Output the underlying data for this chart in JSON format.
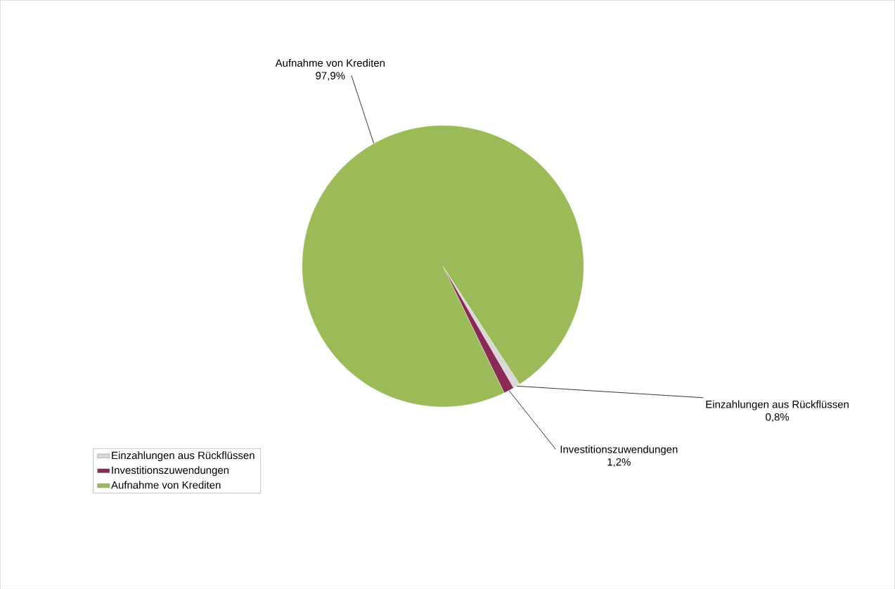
{
  "chart_data": {
    "type": "pie",
    "categories": [
      "Einzahlungen aus Rückflüssen",
      "Investitionszuwendungen",
      "Aufnahme von Krediten"
    ],
    "values": [
      0.8,
      1.2,
      97.9
    ],
    "value_labels": [
      "0,8%",
      "1,2%",
      "97,9%"
    ],
    "colors": [
      "#d9d9d9",
      "#8b2a57",
      "#9bbb59"
    ],
    "legend": "bottom left"
  }
}
